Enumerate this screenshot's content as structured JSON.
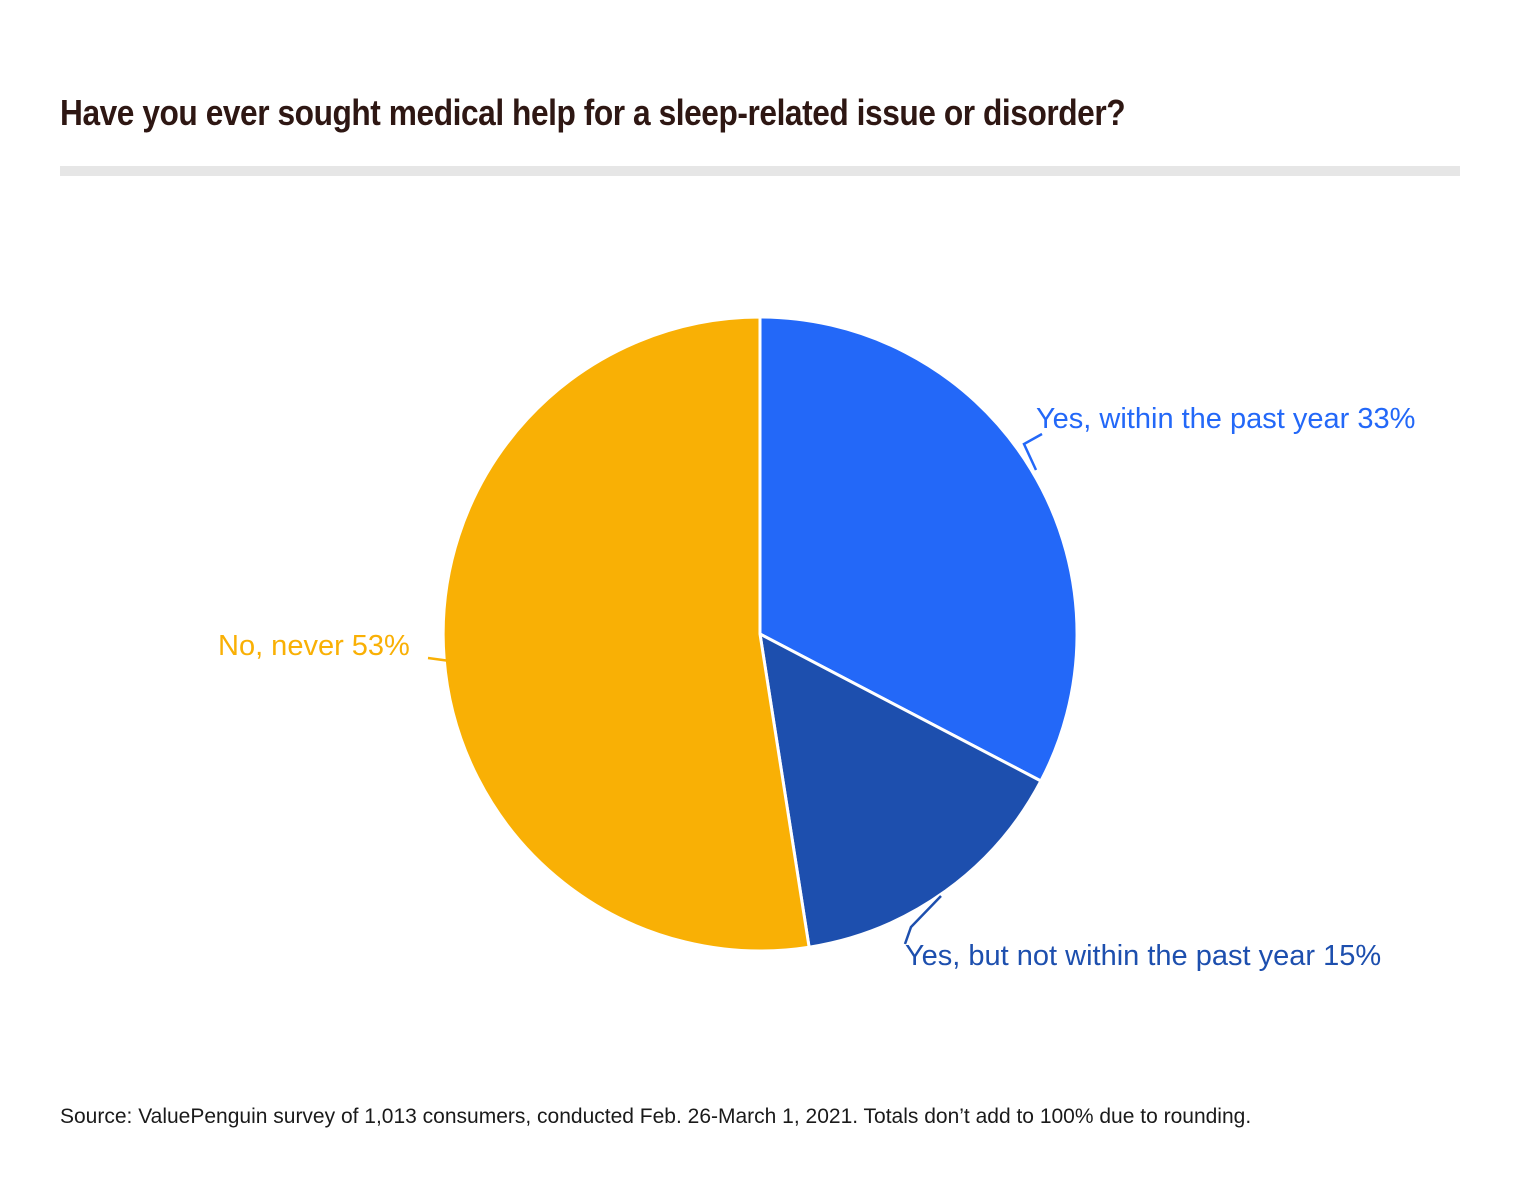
{
  "title": "Have you ever sought medical help for a sleep-related issue or disorder?",
  "source": "Source: ValuePenguin survey of 1,013 consumers, conducted Feb. 26-March 1, 2021. Totals don’t add to 100% due to rounding.",
  "colors": {
    "title_text": "#2E1713",
    "divider": "#E6E6E6",
    "source_text": "#1A1A1A",
    "slice_border": "#FFFFFF"
  },
  "chart_data": {
    "type": "pie",
    "title": "Have you ever sought medical help for a sleep-related issue or disorder?",
    "start_angle_deg": -90,
    "direction": "clockwise",
    "legend_position": "outside-callouts",
    "note": "Totals don’t add to 100% due to rounding (33 + 15 + 53 = 101).",
    "slices": [
      {
        "label": "Yes, within the past year",
        "value": 33,
        "display": "Yes, within the past year 33%",
        "color": "#2368F8"
      },
      {
        "label": "Yes, but not within the past year",
        "value": 15,
        "display": "Yes, but not within the past year 15%",
        "color": "#1D4FAE"
      },
      {
        "label": "No, never",
        "value": 53,
        "display": "No, never 53%",
        "color": "#F9B005"
      }
    ]
  }
}
